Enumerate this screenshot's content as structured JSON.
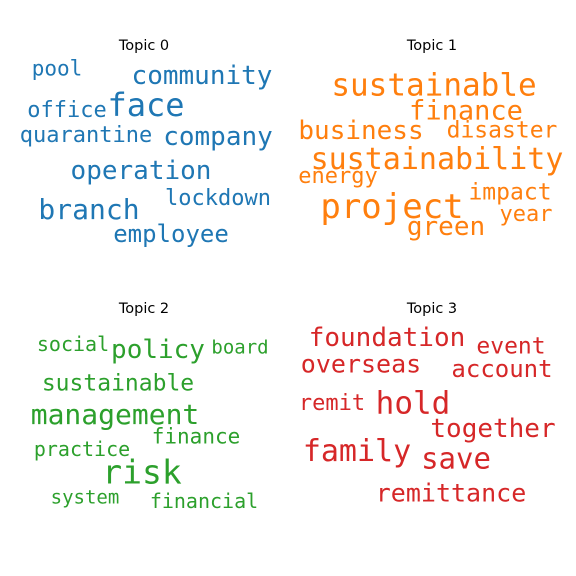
{
  "chart_data": [
    {
      "type": "wordcloud",
      "title": "Topic 0",
      "color": "#1f77b4",
      "words": [
        {
          "text": "face",
          "size": 32
        },
        {
          "text": "community",
          "size": 26
        },
        {
          "text": "company",
          "size": 26
        },
        {
          "text": "operation",
          "size": 26
        },
        {
          "text": "branch",
          "size": 28
        },
        {
          "text": "office",
          "size": 22
        },
        {
          "text": "quarantine",
          "size": 22
        },
        {
          "text": "pool",
          "size": 21
        },
        {
          "text": "lockdown",
          "size": 22
        },
        {
          "text": "employee",
          "size": 24
        }
      ]
    },
    {
      "type": "wordcloud",
      "title": "Topic 1",
      "color": "#ff7f0e",
      "words": [
        {
          "text": "sustainable",
          "size": 31
        },
        {
          "text": "finance",
          "size": 27
        },
        {
          "text": "business",
          "size": 26
        },
        {
          "text": "disaster",
          "size": 23
        },
        {
          "text": "sustainability",
          "size": 30
        },
        {
          "text": "energy",
          "size": 22
        },
        {
          "text": "project",
          "size": 34
        },
        {
          "text": "impact",
          "size": 23
        },
        {
          "text": "year",
          "size": 22
        },
        {
          "text": "green",
          "size": 26
        }
      ]
    },
    {
      "type": "wordcloud",
      "title": "Topic 2",
      "color": "#2ca02c",
      "words": [
        {
          "text": "social",
          "size": 20
        },
        {
          "text": "policy",
          "size": 26
        },
        {
          "text": "board",
          "size": 19
        },
        {
          "text": "sustainable",
          "size": 23
        },
        {
          "text": "management",
          "size": 28
        },
        {
          "text": "practice",
          "size": 20
        },
        {
          "text": "finance",
          "size": 21
        },
        {
          "text": "risk",
          "size": 33
        },
        {
          "text": "system",
          "size": 19
        },
        {
          "text": "financial",
          "size": 20
        }
      ]
    },
    {
      "type": "wordcloud",
      "title": "Topic 3",
      "color": "#d62728",
      "words": [
        {
          "text": "foundation",
          "size": 26
        },
        {
          "text": "event",
          "size": 23
        },
        {
          "text": "overseas",
          "size": 25
        },
        {
          "text": "account",
          "size": 24
        },
        {
          "text": "remit",
          "size": 22
        },
        {
          "text": "hold",
          "size": 31
        },
        {
          "text": "together",
          "size": 26
        },
        {
          "text": "family",
          "size": 30
        },
        {
          "text": "save",
          "size": 29
        },
        {
          "text": "remittance",
          "size": 25
        }
      ]
    }
  ]
}
